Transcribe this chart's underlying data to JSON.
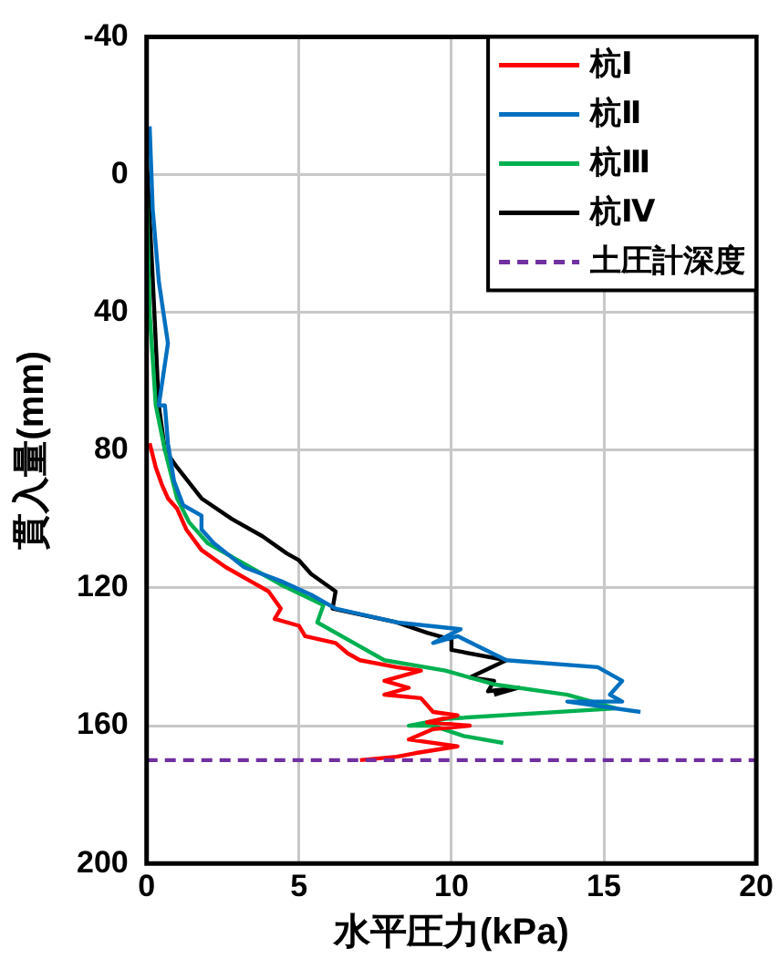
{
  "chart_data": {
    "type": "line",
    "xlabel": "水平圧力(kPa)",
    "ylabel": "貫入量(mm)",
    "xlim": [
      0,
      20
    ],
    "xticks": [
      0,
      5,
      10,
      15,
      20
    ],
    "ylim": [
      200,
      -40
    ],
    "yticks": [
      -40,
      0,
      40,
      80,
      120,
      160,
      200
    ],
    "grid": true,
    "legend": "top right",
    "marker": "none",
    "line_style": "solid",
    "series": [
      {
        "name": "杭Ⅰ",
        "color": "#ff0000",
        "x": [
          0.1,
          0.3,
          0.5,
          0.7,
          1,
          1.3,
          1.8,
          2.6,
          3.4,
          4,
          4.4,
          4.2,
          5,
          5.2,
          6.2,
          6.6,
          7,
          8.2,
          9,
          7.8,
          8.6,
          7.8,
          9,
          9.4,
          10.2,
          9.2,
          10.6,
          9.4,
          8.6,
          10.2,
          8.8,
          8.2,
          7
        ],
        "values": [
          78,
          85,
          90,
          94,
          97,
          103,
          109,
          114,
          118,
          121,
          126,
          129,
          131,
          134,
          136,
          139,
          141,
          143,
          144,
          147,
          149,
          151,
          152,
          156,
          157,
          159,
          160,
          161,
          164,
          166,
          168,
          169,
          170
        ]
      },
      {
        "name": "杭Ⅱ",
        "color": "#0070c0",
        "x": [
          0.1,
          0.2,
          0.4,
          0.7,
          0.4,
          0.6,
          0.7,
          0.9,
          1.2,
          1.8,
          1.8,
          2.2,
          3.2,
          4.4,
          5.4,
          6.2,
          8.2,
          10.3,
          9.4,
          10.2,
          11.8,
          14.8,
          15.6,
          15.2,
          15.6,
          13.8,
          16.2
        ],
        "values": [
          -14,
          10,
          31,
          49,
          67,
          67,
          78,
          89,
          96,
          99,
          103,
          107,
          114,
          118,
          122,
          126,
          130,
          132,
          136,
          134,
          141,
          143,
          147,
          151,
          153,
          153,
          156
        ]
      },
      {
        "name": "杭Ⅲ",
        "color": "#00b050",
        "x": [
          0,
          0.1,
          0.3,
          0.6,
          1,
          1.4,
          2,
          3.4,
          4.4,
          5.8,
          5.6,
          6.6,
          7.8,
          9.8,
          11.4,
          13.8,
          15.4,
          9.8,
          8.6,
          9.4,
          10.4,
          11.7
        ],
        "values": [
          4,
          40,
          67,
          80,
          94,
          101,
          107,
          114,
          119,
          125,
          130,
          135,
          141,
          144,
          148,
          151,
          155,
          158,
          160,
          160,
          163,
          165
        ]
      },
      {
        "name": "杭Ⅳ",
        "color": "#000000",
        "x": [
          0,
          0.2,
          0.4,
          0.6,
          1,
          1.8,
          2.8,
          3.8,
          4.6,
          5,
          5.4,
          6.2,
          6.1,
          8.2,
          9.2,
          10,
          10,
          11.8,
          10.6,
          11.4,
          11.2,
          12.2,
          11.4
        ],
        "values": [
          -5,
          30,
          67,
          80,
          85,
          94,
          100,
          105,
          110,
          112,
          116,
          121,
          126,
          130,
          133,
          135,
          138,
          141,
          146,
          147,
          150,
          149,
          151
        ]
      }
    ],
    "ref_lines": [
      {
        "axis": "y",
        "value": 170,
        "label": "土圧計深度",
        "color": "#7030a0",
        "line_style": "dashed"
      }
    ]
  }
}
